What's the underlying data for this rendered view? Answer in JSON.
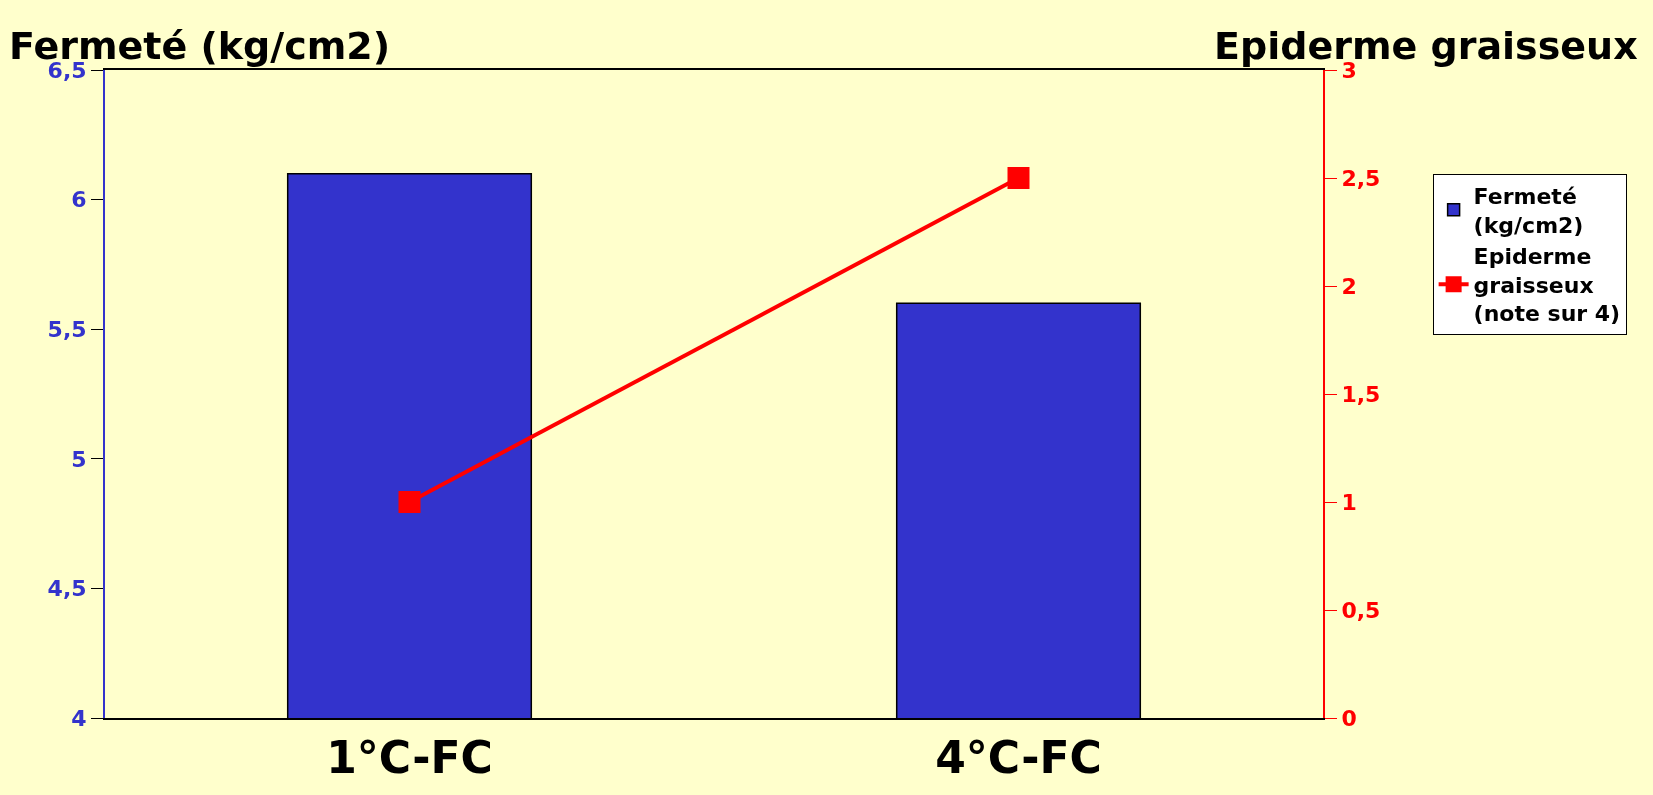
{
  "chart_data": {
    "type": "bar",
    "categories": [
      "1°C-FC",
      "4°C-FC"
    ],
    "ylabel": "Fermeté (kg/cm2)",
    "y2label": "Epiderme graisseux",
    "series": [
      {
        "name": "Fermeté (kg/cm2)",
        "color": "#3333cc",
        "values": [
          6.1,
          5.6
        ]
      },
      {
        "name": "Epiderme graisseux (note sur 4)",
        "type": "line",
        "color": "#ff0000",
        "axis": "y2",
        "marker": "square",
        "values": [
          1.0,
          2.5
        ]
      }
    ],
    "ylim": [
      4,
      6.5
    ],
    "yticks": [
      4,
      {
        "value": 4.5,
        "label": "4,5"
      },
      5,
      {
        "value": 5.5,
        "label": "5,5"
      },
      6,
      {
        "value": 6.5,
        "label": "6,5"
      }
    ],
    "y2lim": [
      0,
      3
    ],
    "y2ticks": [
      0,
      {
        "value": 0.5,
        "label": "0,5"
      },
      1,
      {
        "value": 1.5,
        "label": "1,5"
      },
      2,
      {
        "value": 2.5,
        "label": "2,5"
      },
      3
    ],
    "grid": false,
    "legend": "right"
  }
}
